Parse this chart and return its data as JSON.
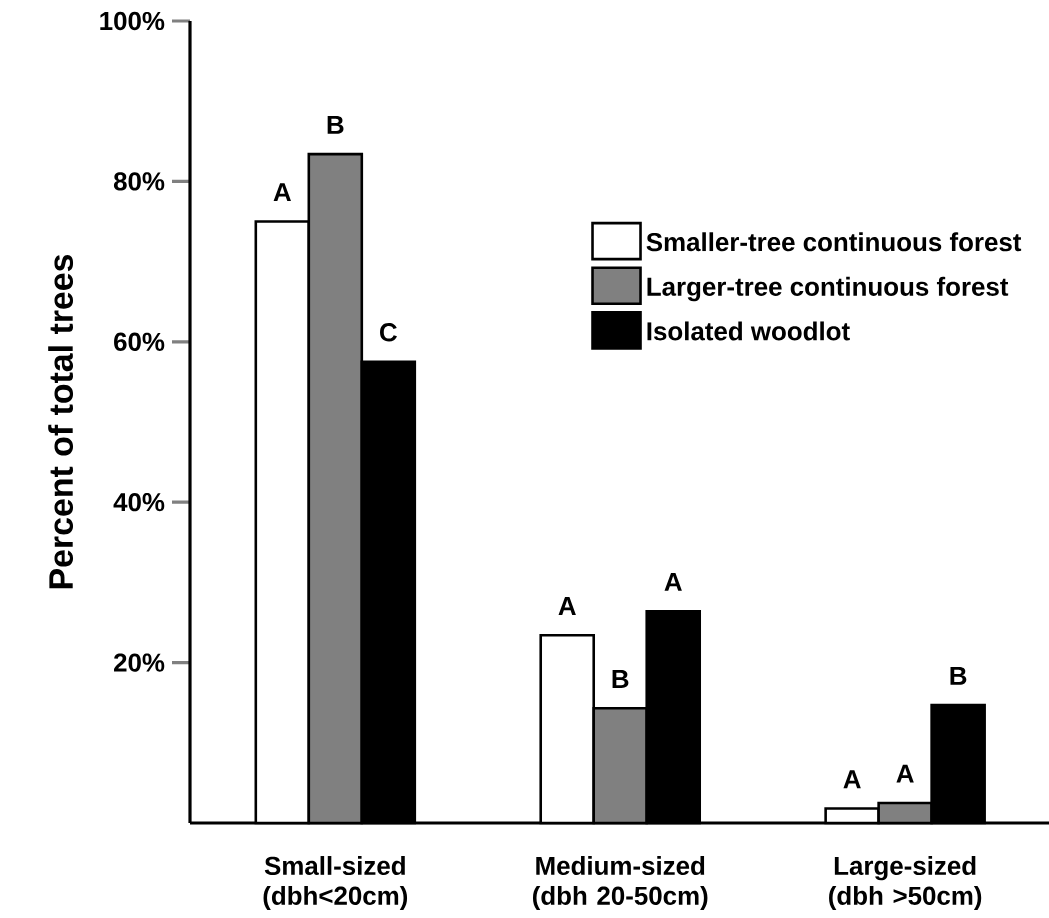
{
  "chart_data": {
    "type": "bar",
    "ylabel": "Percent of total trees",
    "categories": [
      "Small-sized (dbh<20cm)",
      "Medium-sized (dbh 20-50cm)",
      "Large-sized (dbh >50cm)"
    ],
    "series": [
      {
        "name": "Smaller-tree continuous forest",
        "color": "#ffffff",
        "values": [
          75,
          23.4,
          1.8
        ]
      },
      {
        "name": "Larger-tree continuous forest",
        "color": "#808080",
        "values": [
          83.4,
          14.3,
          2.5
        ]
      },
      {
        "name": "Isolated woodlot",
        "color": "#000000",
        "values": [
          57.5,
          26.4,
          14.7
        ]
      }
    ],
    "ylim": [
      0,
      100
    ],
    "yticks": [
      {
        "value": 20,
        "label": "20%"
      },
      {
        "value": 40,
        "label": "40%"
      },
      {
        "value": 60,
        "label": "60%"
      },
      {
        "value": 80,
        "label": "80%"
      },
      {
        "value": 100,
        "label": "100%"
      }
    ],
    "legend": "top right",
    "grid": false,
    "annotations": [
      "A",
      "B",
      "C",
      "A",
      "B",
      "A",
      "A",
      "A",
      "B"
    ]
  }
}
